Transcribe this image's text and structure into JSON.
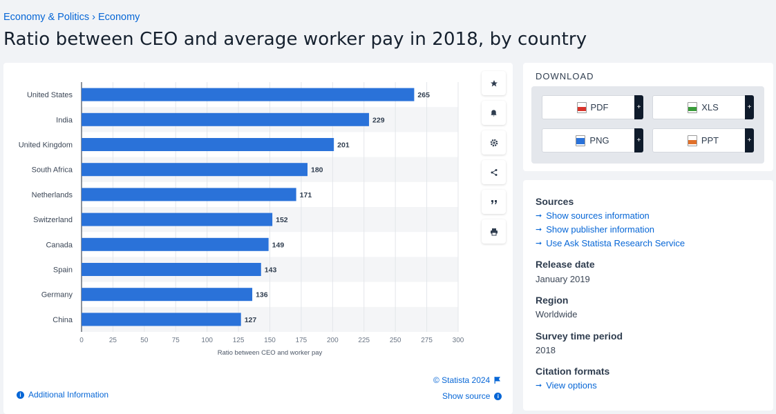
{
  "breadcrumb": {
    "item1": "Economy & Politics",
    "sep": "›",
    "item2": "Economy"
  },
  "page_title": "Ratio between CEO and average worker pay in 2018, by country",
  "chart_data": {
    "type": "bar",
    "orientation": "horizontal",
    "categories": [
      "United States",
      "India",
      "United Kingdom",
      "South Africa",
      "Netherlands",
      "Switzerland",
      "Canada",
      "Spain",
      "Germany",
      "China"
    ],
    "values": [
      265,
      229,
      201,
      180,
      171,
      152,
      149,
      143,
      136,
      127
    ],
    "xlabel": "Ratio between CEO and worker pay",
    "xlim": [
      0,
      300
    ],
    "xticks": [
      0,
      25,
      50,
      75,
      100,
      125,
      150,
      175,
      200,
      225,
      250,
      275,
      300
    ],
    "data_labels": true,
    "grid": true,
    "bar_color": "#2a72d9"
  },
  "chart_footer": {
    "credit": "© Statista 2024",
    "show_source": "Show source",
    "additional_info": "Additional Information"
  },
  "tools": [
    "star-icon",
    "bell-icon",
    "gear-icon",
    "share-icon",
    "quote-icon",
    "print-icon"
  ],
  "download": {
    "title": "DOWNLOAD",
    "buttons": [
      {
        "label": "PDF",
        "icon": "pdf-file-icon",
        "color": "#d9342b"
      },
      {
        "label": "XLS",
        "icon": "xls-file-icon",
        "color": "#3a9c3a"
      },
      {
        "label": "PNG",
        "icon": "png-file-icon",
        "color": "#2a72d9"
      },
      {
        "label": "PPT",
        "icon": "ppt-file-icon",
        "color": "#e0702a"
      }
    ],
    "plus": "+"
  },
  "info": {
    "sources_title": "Sources",
    "links": [
      "Show sources information",
      "Show publisher information",
      "Use Ask Statista Research Service"
    ],
    "release_title": "Release date",
    "release_value": "January 2019",
    "region_title": "Region",
    "region_value": "Worldwide",
    "survey_title": "Survey time period",
    "survey_value": "2018",
    "citation_title": "Citation formats",
    "citation_link": "View options"
  }
}
